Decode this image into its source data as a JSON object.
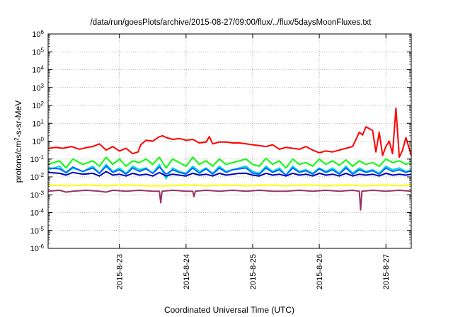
{
  "chart_data": {
    "type": "line",
    "title": "/data/run/goesPlots/archive/2015-08-27/09:00/flux/../flux/5daysMoonFluxes.txt",
    "xlabel": "Coordinated Universal Time (UTC)",
    "ylabel_parts": {
      "pre": "protons/cm",
      "sup": "2",
      "post": "-s-sr-MeV"
    },
    "yscale": "log",
    "ylim_exp": [
      -6,
      6
    ],
    "y_ticks": [
      {
        "base": "10",
        "exp": "6"
      },
      {
        "base": "10",
        "exp": "5"
      },
      {
        "base": "10",
        "exp": "4"
      },
      {
        "base": "10",
        "exp": "3"
      },
      {
        "base": "10",
        "exp": "2"
      },
      {
        "base": "10",
        "exp": "1"
      },
      {
        "base": "10",
        "exp": "0"
      },
      {
        "base": "10",
        "exp": "-1"
      },
      {
        "base": "10",
        "exp": "-2"
      },
      {
        "base": "10",
        "exp": "-3"
      },
      {
        "base": "10",
        "exp": "-4"
      },
      {
        "base": "10",
        "exp": "-5"
      },
      {
        "base": "10",
        "exp": "-6"
      }
    ],
    "x_ticks": [
      {
        "label": "2015-8-23",
        "day": 1.0
      },
      {
        "label": "2015-8-24",
        "day": 2.0
      },
      {
        "label": "2015-8-25",
        "day": 3.0
      },
      {
        "label": "2015-8-26",
        "day": 4.0
      },
      {
        "label": "2015-8-27",
        "day": 5.0
      }
    ],
    "xlim_day": [
      -0.07,
      5.38
    ],
    "grid": true,
    "series": [
      {
        "color": "#ff0000",
        "x_day": [
          -0.07,
          0.05,
          0.15,
          0.28,
          0.4,
          0.52,
          0.6,
          0.7,
          0.8,
          0.9,
          1.0,
          1.1,
          1.2,
          1.28,
          1.32,
          1.4,
          1.5,
          1.6,
          1.65,
          1.7,
          1.8,
          1.9,
          2.0,
          2.1,
          2.2,
          2.3,
          2.35,
          2.4,
          2.5,
          2.6,
          2.7,
          2.8,
          2.9,
          3.0,
          3.1,
          3.2,
          3.3,
          3.4,
          3.5,
          3.6,
          3.7,
          3.8,
          3.9,
          4.0,
          4.1,
          4.2,
          4.3,
          4.4,
          4.5,
          4.6,
          4.65,
          4.7,
          4.8,
          4.85,
          4.9,
          4.95,
          5.0,
          5.05,
          5.1,
          5.15,
          5.2,
          5.25,
          5.3,
          5.38
        ],
        "y_log": [
          -0.4,
          -0.35,
          -0.4,
          -0.3,
          -0.45,
          -0.35,
          -0.3,
          -0.15,
          -0.5,
          -0.3,
          -0.55,
          -0.4,
          -0.7,
          -0.6,
          -0.2,
          0.05,
          0.0,
          0.25,
          0.3,
          0.2,
          0.1,
          0.15,
          0.05,
          0.1,
          -0.1,
          -0.05,
          0.25,
          -0.15,
          -0.05,
          -0.05,
          -0.1,
          -0.1,
          -0.15,
          -0.2,
          -0.25,
          -0.3,
          -0.2,
          -0.45,
          -0.35,
          -0.4,
          -0.45,
          -0.3,
          -0.5,
          -0.65,
          -0.55,
          -0.6,
          -0.5,
          -0.4,
          -0.3,
          0.5,
          0.35,
          0.8,
          0.6,
          -0.6,
          0.5,
          -0.8,
          -0.3,
          0.0,
          -0.7,
          1.85,
          -0.9,
          -0.5,
          0.2,
          -0.8
        ]
      },
      {
        "color": "#00ff00",
        "x_day": [
          -0.07,
          0.1,
          0.2,
          0.3,
          0.45,
          0.6,
          0.7,
          0.8,
          0.9,
          1.0,
          1.1,
          1.2,
          1.3,
          1.4,
          1.5,
          1.6,
          1.7,
          1.8,
          1.9,
          2.0,
          2.1,
          2.2,
          2.3,
          2.4,
          2.5,
          2.6,
          2.7,
          2.8,
          2.9,
          3.0,
          3.1,
          3.2,
          3.3,
          3.4,
          3.5,
          3.6,
          3.7,
          3.8,
          3.9,
          4.0,
          4.1,
          4.2,
          4.3,
          4.4,
          4.5,
          4.6,
          4.7,
          4.8,
          4.9,
          5.0,
          5.1,
          5.2,
          5.3,
          5.38
        ],
        "y_log": [
          -1.3,
          -1.1,
          -1.5,
          -1.0,
          -1.3,
          -1.1,
          -1.4,
          -0.9,
          -1.3,
          -1.0,
          -1.4,
          -1.1,
          -1.2,
          -1.0,
          -1.3,
          -0.9,
          -1.5,
          -1.0,
          -1.2,
          -1.4,
          -0.9,
          -1.3,
          -1.1,
          -1.4,
          -1.0,
          -1.3,
          -1.2,
          -1.1,
          -1.0,
          -1.3,
          -1.4,
          -0.95,
          -1.3,
          -1.1,
          -1.5,
          -1.0,
          -1.3,
          -1.2,
          -1.4,
          -1.0,
          -1.3,
          -1.1,
          -1.35,
          -1.05,
          -1.4,
          -1.1,
          -1.3,
          -1.2,
          -1.4,
          -1.0,
          -1.2,
          -1.1,
          -1.3,
          -1.2
        ]
      },
      {
        "color": "#00d8d8",
        "x_day": [
          -0.07,
          0.1,
          0.2,
          0.3,
          0.45,
          0.6,
          0.7,
          0.8,
          0.9,
          1.0,
          1.1,
          1.2,
          1.3,
          1.4,
          1.5,
          1.6,
          1.7,
          1.8,
          1.9,
          2.0,
          2.1,
          2.2,
          2.3,
          2.4,
          2.5,
          2.6,
          2.7,
          2.8,
          2.9,
          3.0,
          3.1,
          3.2,
          3.3,
          3.4,
          3.5,
          3.6,
          3.7,
          3.8,
          3.9,
          4.0,
          4.1,
          4.2,
          4.3,
          4.4,
          4.5,
          4.6,
          4.7,
          4.8,
          4.9,
          5.0,
          5.1,
          5.2,
          5.3,
          5.38
        ],
        "y_log": [
          -1.6,
          -1.4,
          -1.8,
          -1.5,
          -1.7,
          -1.4,
          -1.8,
          -1.3,
          -1.7,
          -1.5,
          -1.8,
          -1.4,
          -1.6,
          -1.5,
          -1.8,
          -1.3,
          -2.1,
          -1.5,
          -1.7,
          -1.8,
          -1.4,
          -1.7,
          -1.5,
          -1.8,
          -1.4,
          -1.7,
          -1.6,
          -1.5,
          -1.4,
          -1.7,
          -1.8,
          -1.4,
          -1.7,
          -1.5,
          -1.9,
          -1.4,
          -1.7,
          -1.6,
          -1.8,
          -1.5,
          -1.7,
          -1.5,
          -1.8,
          -1.4,
          -1.8,
          -1.5,
          -1.7,
          -1.6,
          -1.8,
          -1.4,
          -1.6,
          -1.5,
          -1.7,
          -1.6
        ]
      },
      {
        "color": "#0066ff",
        "x_day": [
          -0.07,
          0.1,
          0.2,
          0.3,
          0.45,
          0.6,
          0.7,
          0.8,
          0.9,
          1.0,
          1.1,
          1.2,
          1.3,
          1.4,
          1.5,
          1.6,
          1.7,
          1.8,
          1.9,
          2.0,
          2.1,
          2.2,
          2.3,
          2.4,
          2.5,
          2.6,
          2.7,
          2.8,
          2.9,
          3.0,
          3.1,
          3.2,
          3.3,
          3.4,
          3.5,
          3.6,
          3.7,
          3.8,
          3.9,
          4.0,
          4.1,
          4.2,
          4.3,
          4.4,
          4.5,
          4.6,
          4.7,
          4.8,
          4.9,
          5.0,
          5.1,
          5.2,
          5.3,
          5.38
        ],
        "y_log": [
          -1.5,
          -1.55,
          -1.75,
          -1.45,
          -1.7,
          -1.5,
          -1.8,
          -1.4,
          -1.75,
          -1.6,
          -1.85,
          -1.5,
          -1.7,
          -1.55,
          -1.8,
          -1.45,
          -1.85,
          -1.6,
          -1.75,
          -1.85,
          -1.5,
          -1.8,
          -1.55,
          -1.85,
          -1.5,
          -1.75,
          -1.6,
          -1.55,
          -1.5,
          -1.8,
          -1.85,
          -1.5,
          -1.75,
          -1.6,
          -1.9,
          -1.5,
          -1.75,
          -1.65,
          -1.85,
          -1.55,
          -1.75,
          -1.6,
          -1.85,
          -1.5,
          -1.85,
          -1.6,
          -1.75,
          -1.65,
          -1.85,
          -1.5,
          -1.7,
          -1.6,
          -1.75,
          -1.65
        ]
      },
      {
        "color": "#0000b4",
        "x_day": [
          -0.07,
          0.1,
          0.2,
          0.3,
          0.45,
          0.6,
          0.7,
          0.8,
          0.9,
          1.0,
          1.1,
          1.2,
          1.3,
          1.4,
          1.5,
          1.6,
          1.7,
          1.8,
          1.9,
          2.0,
          2.1,
          2.2,
          2.3,
          2.4,
          2.5,
          2.6,
          2.7,
          2.8,
          2.9,
          3.0,
          3.1,
          3.2,
          3.3,
          3.4,
          3.5,
          3.6,
          3.7,
          3.8,
          3.9,
          4.0,
          4.1,
          4.2,
          4.3,
          4.4,
          4.5,
          4.6,
          4.7,
          4.8,
          4.9,
          5.0,
          5.1,
          5.2,
          5.3,
          5.38
        ],
        "y_log": [
          -1.75,
          -1.8,
          -1.9,
          -1.75,
          -1.85,
          -1.8,
          -1.95,
          -1.7,
          -1.9,
          -1.85,
          -1.95,
          -1.8,
          -1.9,
          -1.85,
          -1.95,
          -1.75,
          -1.95,
          -1.85,
          -1.9,
          -1.95,
          -1.8,
          -1.9,
          -1.85,
          -1.95,
          -1.8,
          -1.9,
          -1.85,
          -1.8,
          -1.8,
          -1.9,
          -1.95,
          -1.8,
          -1.9,
          -1.85,
          -1.95,
          -1.8,
          -1.9,
          -1.85,
          -1.95,
          -1.8,
          -1.9,
          -1.85,
          -1.95,
          -1.8,
          -1.95,
          -1.85,
          -1.9,
          -1.85,
          -1.95,
          -1.8,
          -1.9,
          -1.85,
          -1.9,
          -1.85
        ]
      },
      {
        "color": "#ffff00",
        "x_day": [
          -0.07,
          0.2,
          0.5,
          0.8,
          1.1,
          1.4,
          1.7,
          2.0,
          2.3,
          2.6,
          2.9,
          3.2,
          3.5,
          3.8,
          4.1,
          4.4,
          4.7,
          5.0,
          5.2,
          5.38
        ],
        "y_log": [
          -2.45,
          -2.5,
          -2.45,
          -2.5,
          -2.45,
          -2.5,
          -2.5,
          -2.45,
          -2.5,
          -2.45,
          -2.5,
          -2.45,
          -2.5,
          -2.45,
          -2.5,
          -2.45,
          -2.5,
          -2.45,
          -2.5,
          -2.45
        ]
      },
      {
        "color": "#993366",
        "x_day": [
          -0.07,
          0.1,
          0.2,
          0.3,
          0.5,
          0.7,
          0.8,
          0.9,
          1.1,
          1.3,
          1.5,
          1.6,
          1.62,
          1.64,
          1.8,
          2.0,
          2.1,
          2.12,
          2.14,
          2.3,
          2.5,
          2.7,
          2.9,
          3.1,
          3.3,
          3.5,
          3.7,
          3.9,
          4.1,
          4.3,
          4.5,
          4.6,
          4.62,
          4.64,
          4.8,
          5.0,
          5.2,
          5.38
        ],
        "y_log": [
          -2.8,
          -2.75,
          -2.85,
          -2.8,
          -2.75,
          -2.8,
          -2.85,
          -2.75,
          -2.8,
          -2.75,
          -2.8,
          -2.8,
          -3.45,
          -2.8,
          -2.75,
          -2.8,
          -2.8,
          -3.1,
          -2.8,
          -2.75,
          -2.8,
          -2.75,
          -2.8,
          -2.75,
          -2.8,
          -2.8,
          -2.75,
          -2.8,
          -2.75,
          -2.8,
          -2.75,
          -2.8,
          -3.85,
          -2.8,
          -2.75,
          -2.8,
          -2.75,
          -2.8
        ]
      }
    ]
  }
}
